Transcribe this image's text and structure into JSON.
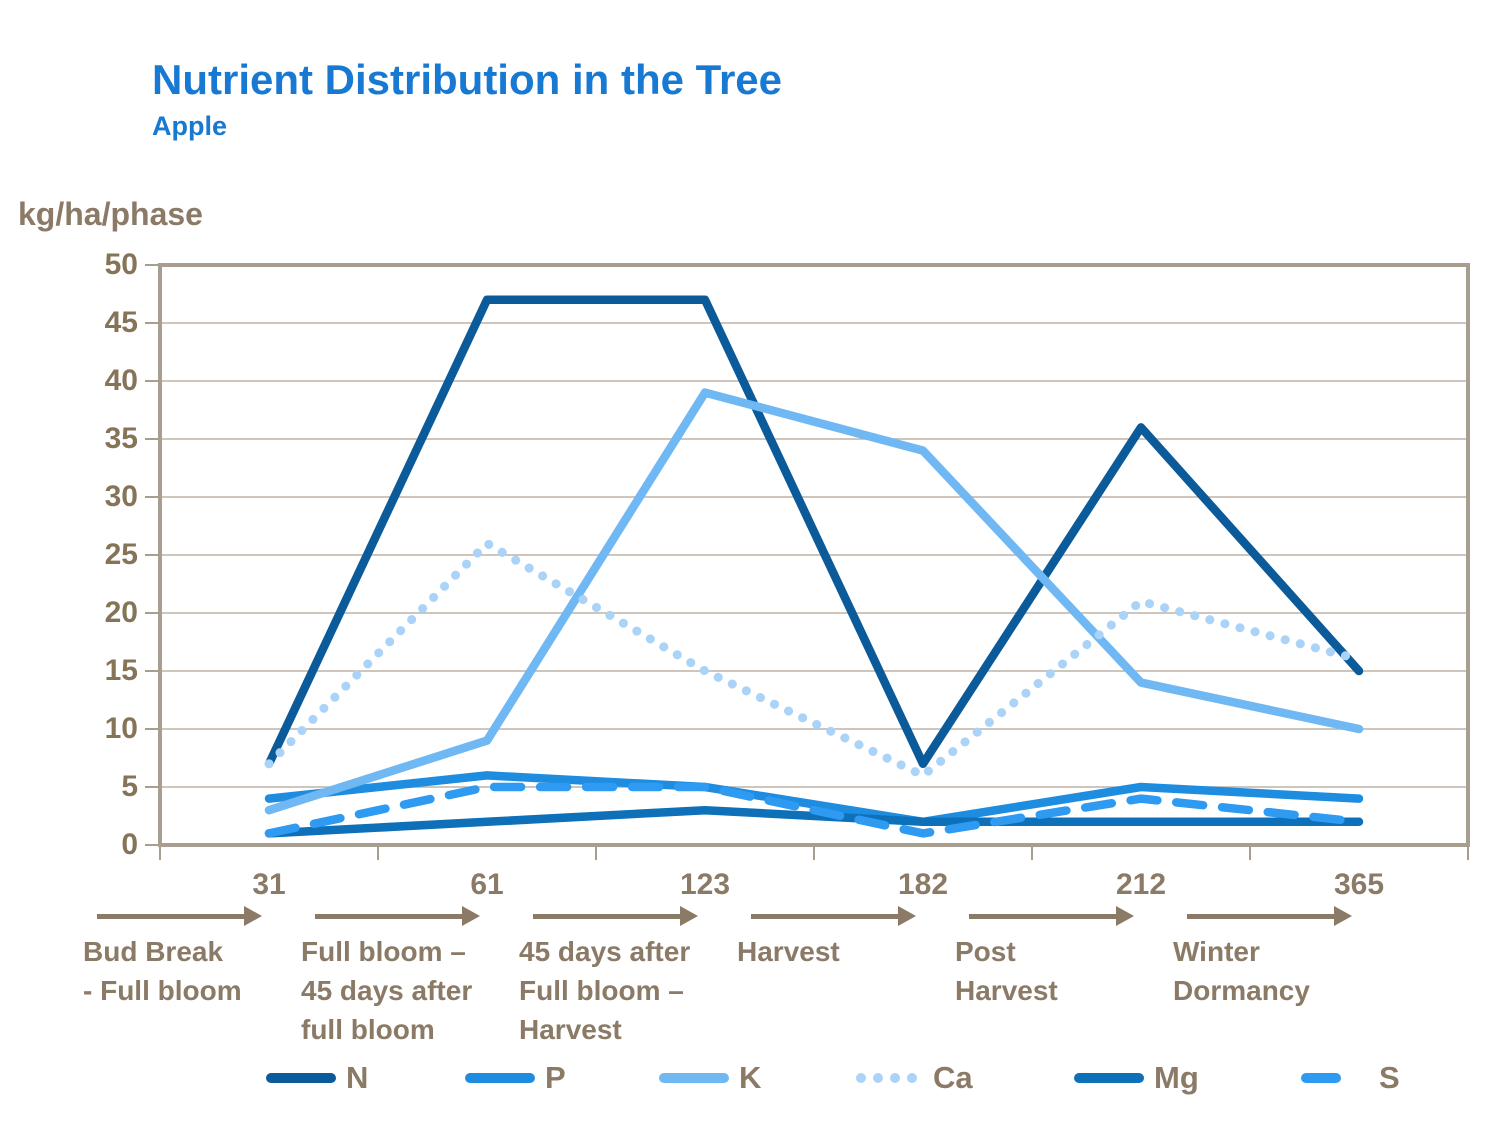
{
  "header": {
    "title": "Nutrient Distribution in the Tree",
    "subtitle": "Apple"
  },
  "y_axis_unit": "kg/ha/phase",
  "chart_data": {
    "type": "line",
    "title": "Nutrient Distribution in the Tree",
    "subtitle": "Apple",
    "ylabel": "kg/ha/phase",
    "xlabel": "",
    "ylim": [
      0,
      50
    ],
    "yticks": [
      0,
      5,
      10,
      15,
      20,
      25,
      30,
      35,
      40,
      45,
      50
    ],
    "grid": true,
    "legend_position": "bottom",
    "x": [
      31,
      61,
      123,
      182,
      212,
      365
    ],
    "x_tick_labels": [
      "31",
      "61",
      "123",
      "182",
      "212",
      "365"
    ],
    "phases": [
      {
        "day": "31",
        "name": "Bud Break - Full bloom",
        "lines": [
          "Bud Break",
          "- Full bloom"
        ]
      },
      {
        "day": "61",
        "name": "Full bloom – 45 days after full bloom",
        "lines": [
          "Full bloom –",
          "45 days after",
          "full bloom"
        ]
      },
      {
        "day": "123",
        "name": "45 days after Full bloom – Harvest",
        "lines": [
          "45 days after",
          "Full bloom –",
          "Harvest"
        ]
      },
      {
        "day": "182",
        "name": "Harvest",
        "lines": [
          "Harvest"
        ]
      },
      {
        "day": "212",
        "name": "Post Harvest",
        "lines": [
          "Post",
          "Harvest"
        ]
      },
      {
        "day": "365",
        "name": "Winter Dormancy",
        "lines": [
          "Winter",
          "Dormancy"
        ]
      }
    ],
    "series": [
      {
        "name": "N",
        "color": "#0b5a9a",
        "style": "solid",
        "values": [
          7,
          47,
          47,
          7,
          36,
          15
        ]
      },
      {
        "name": "P",
        "color": "#1e8cdf",
        "style": "solid",
        "values": [
          4,
          6,
          5,
          2,
          5,
          4
        ]
      },
      {
        "name": "K",
        "color": "#6fb8f4",
        "style": "solid",
        "values": [
          3,
          9,
          39,
          34,
          14,
          10
        ]
      },
      {
        "name": "Ca",
        "color": "#aad3f7",
        "style": "dotted",
        "values": [
          7,
          26,
          15,
          6,
          21,
          16
        ]
      },
      {
        "name": "Mg",
        "color": "#0d70b8",
        "style": "solid",
        "values": [
          1,
          2,
          3,
          2,
          2,
          2
        ]
      },
      {
        "name": "S",
        "color": "#2e9af2",
        "style": "dashed",
        "values": [
          1,
          5,
          5,
          1,
          4,
          2
        ]
      }
    ]
  },
  "colors": {
    "title_blue": "#1779d2",
    "axis_text_brown": "#8a7a66",
    "gridline": "#bdb3a6",
    "plot_border": "#a89e90",
    "background": "#ffffff"
  }
}
